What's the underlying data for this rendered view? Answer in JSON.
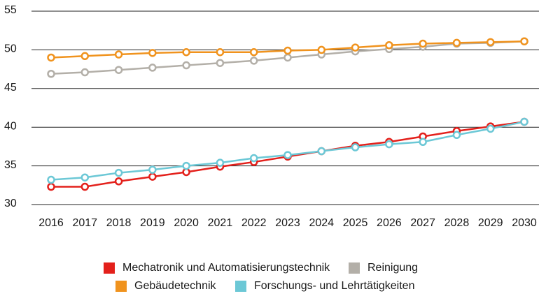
{
  "chart_data": {
    "type": "line",
    "x": [
      2016,
      2017,
      2018,
      2019,
      2020,
      2021,
      2022,
      2023,
      2024,
      2025,
      2026,
      2027,
      2028,
      2029,
      2030
    ],
    "xticks": [
      2016,
      2017,
      2018,
      2019,
      2020,
      2021,
      2022,
      2023,
      2024,
      2025,
      2026,
      2027,
      2028,
      2029,
      2030
    ],
    "xlim": [
      2016,
      2030
    ],
    "ylim": [
      30,
      55
    ],
    "yticks": [
      30,
      35,
      40,
      45,
      50,
      55
    ],
    "grid": true,
    "legend": "bottom",
    "series": [
      {
        "name": "Mechatronik und Automatisierungstechnik",
        "color": "#e3201b",
        "values": [
          32.3,
          32.3,
          33.0,
          33.6,
          34.2,
          34.9,
          35.5,
          36.2,
          36.9,
          37.6,
          38.1,
          38.8,
          39.5,
          40.1,
          40.7
        ]
      },
      {
        "name": "Reinigung",
        "color": "#b3afa8",
        "values": [
          46.9,
          47.1,
          47.4,
          47.7,
          48.0,
          48.3,
          48.6,
          49.0,
          49.4,
          49.8,
          50.1,
          50.4,
          50.8,
          50.9,
          51.1
        ]
      },
      {
        "name": "Gebäudetechnik",
        "color": "#f0931e",
        "values": [
          49.0,
          49.2,
          49.4,
          49.6,
          49.7,
          49.7,
          49.7,
          49.9,
          50.0,
          50.3,
          50.6,
          50.8,
          50.9,
          51.0,
          51.1
        ]
      },
      {
        "name": "Forschungs- und Lehrtätigkeiten",
        "color": "#6cc8d6",
        "values": [
          33.2,
          33.5,
          34.1,
          34.5,
          35.0,
          35.4,
          36.0,
          36.4,
          36.9,
          37.4,
          37.8,
          38.1,
          39.0,
          39.8,
          40.7
        ]
      }
    ]
  }
}
